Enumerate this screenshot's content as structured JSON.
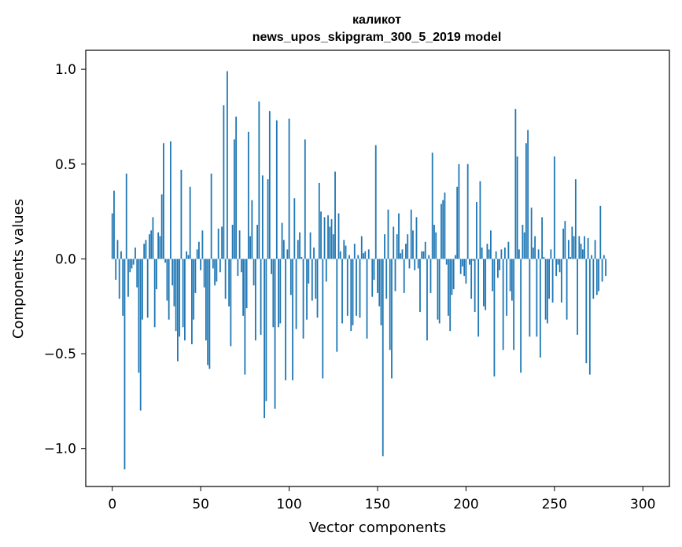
{
  "chart_data": {
    "type": "bar",
    "title": "каликот",
    "subtitle": "news_upos_skipgram_300_5_2019 model",
    "xlabel": "Vector components",
    "ylabel": "Components values",
    "xlim": [
      -15,
      315
    ],
    "ylim": [
      -1.2,
      1.1
    ],
    "xticks": [
      0,
      50,
      100,
      150,
      200,
      250,
      300
    ],
    "yticks": [
      1.0,
      0.5,
      0.0,
      -0.5,
      -1.0
    ],
    "ytick_labels": [
      "1.0",
      "0.5",
      "0.0",
      "−0.5",
      "−1.0"
    ],
    "grid": false,
    "bar_color": "#1f77b4",
    "values": [
      0.24,
      0.36,
      -0.11,
      0.1,
      -0.21,
      0.04,
      -0.3,
      -1.11,
      0.45,
      -0.2,
      -0.07,
      -0.05,
      -0.03,
      0.06,
      -0.15,
      -0.6,
      -0.8,
      -0.32,
      0.08,
      0.1,
      -0.31,
      0.13,
      0.15,
      0.22,
      -0.36,
      -0.16,
      0.14,
      0.12,
      0.34,
      0.61,
      -0.02,
      -0.22,
      -0.32,
      0.62,
      -0.14,
      -0.25,
      -0.38,
      -0.54,
      -0.41,
      0.47,
      -0.36,
      -0.43,
      0.04,
      0.02,
      0.38,
      -0.45,
      -0.32,
      -0.18,
      0.05,
      0.09,
      -0.06,
      0.15,
      -0.15,
      -0.43,
      -0.56,
      -0.58,
      0.45,
      -0.05,
      -0.14,
      -0.12,
      0.16,
      -0.07,
      0.17,
      0.81,
      -0.21,
      0.99,
      -0.25,
      -0.46,
      0.18,
      0.63,
      0.75,
      -0.09,
      0.15,
      -0.07,
      -0.3,
      -0.61,
      -0.26,
      0.67,
      0.12,
      0.31,
      -0.14,
      -0.43,
      0.18,
      0.83,
      -0.4,
      0.44,
      -0.84,
      -0.75,
      0.42,
      0.78,
      -0.08,
      -0.36,
      -0.79,
      0.73,
      -0.36,
      -0.34,
      0.19,
      0.1,
      -0.64,
      0.05,
      0.74,
      -0.19,
      -0.64,
      0.32,
      -0.37,
      0.1,
      0.14,
      0.01,
      -0.42,
      0.63,
      -0.32,
      -0.13,
      0.14,
      -0.22,
      0.06,
      -0.21,
      -0.31,
      0.4,
      0.25,
      -0.63,
      0.22,
      -0.12,
      0.23,
      0.17,
      0.21,
      0.13,
      0.46,
      -0.49,
      0.24,
      0.04,
      -0.34,
      0.1,
      0.07,
      -0.3,
      0.02,
      -0.38,
      -0.35,
      0.08,
      -0.3,
      0.02,
      -0.31,
      0.12,
      0.03,
      0.04,
      -0.42,
      0.05,
      0.0,
      -0.2,
      -0.11,
      0.6,
      -0.18,
      -0.25,
      -0.35,
      -1.04,
      0.13,
      -0.21,
      0.26,
      -0.48,
      -0.63,
      0.17,
      -0.17,
      0.13,
      0.24,
      0.03,
      0.05,
      -0.18,
      0.08,
      0.13,
      -0.05,
      0.26,
      0.15,
      -0.06,
      0.22,
      -0.05,
      -0.28,
      0.04,
      0.04,
      0.09,
      -0.43,
      0.02,
      -0.18,
      0.56,
      0.18,
      0.14,
      -0.32,
      -0.34,
      0.29,
      0.31,
      0.35,
      -0.03,
      -0.3,
      -0.38,
      -0.19,
      -0.16,
      0.02,
      0.38,
      0.5,
      -0.08,
      -0.04,
      -0.09,
      -0.13,
      0.5,
      -0.03,
      -0.21,
      -0.01,
      -0.28,
      0.3,
      -0.41,
      0.41,
      0.06,
      -0.25,
      -0.27,
      0.08,
      0.05,
      0.15,
      -0.17,
      -0.62,
      0.04,
      -0.1,
      -0.06,
      0.05,
      -0.48,
      0.06,
      -0.3,
      0.09,
      -0.17,
      -0.22,
      -0.48,
      0.79,
      0.54,
      0.05,
      -0.6,
      0.18,
      0.14,
      0.61,
      0.68,
      -0.41,
      0.27,
      0.06,
      0.12,
      -0.41,
      0.05,
      -0.52,
      0.22,
      0.01,
      -0.32,
      -0.34,
      -0.21,
      0.05,
      -0.23,
      0.54,
      -0.09,
      -0.03,
      -0.07,
      -0.23,
      0.16,
      0.2,
      -0.32,
      0.1,
      0.01,
      0.17,
      0.12,
      0.42,
      -0.4,
      0.12,
      0.08,
      0.05,
      0.12,
      -0.55,
      0.11,
      -0.61,
      0.02,
      -0.21,
      0.1,
      -0.19,
      -0.17,
      0.28,
      -0.12,
      0.02,
      -0.09
    ]
  }
}
